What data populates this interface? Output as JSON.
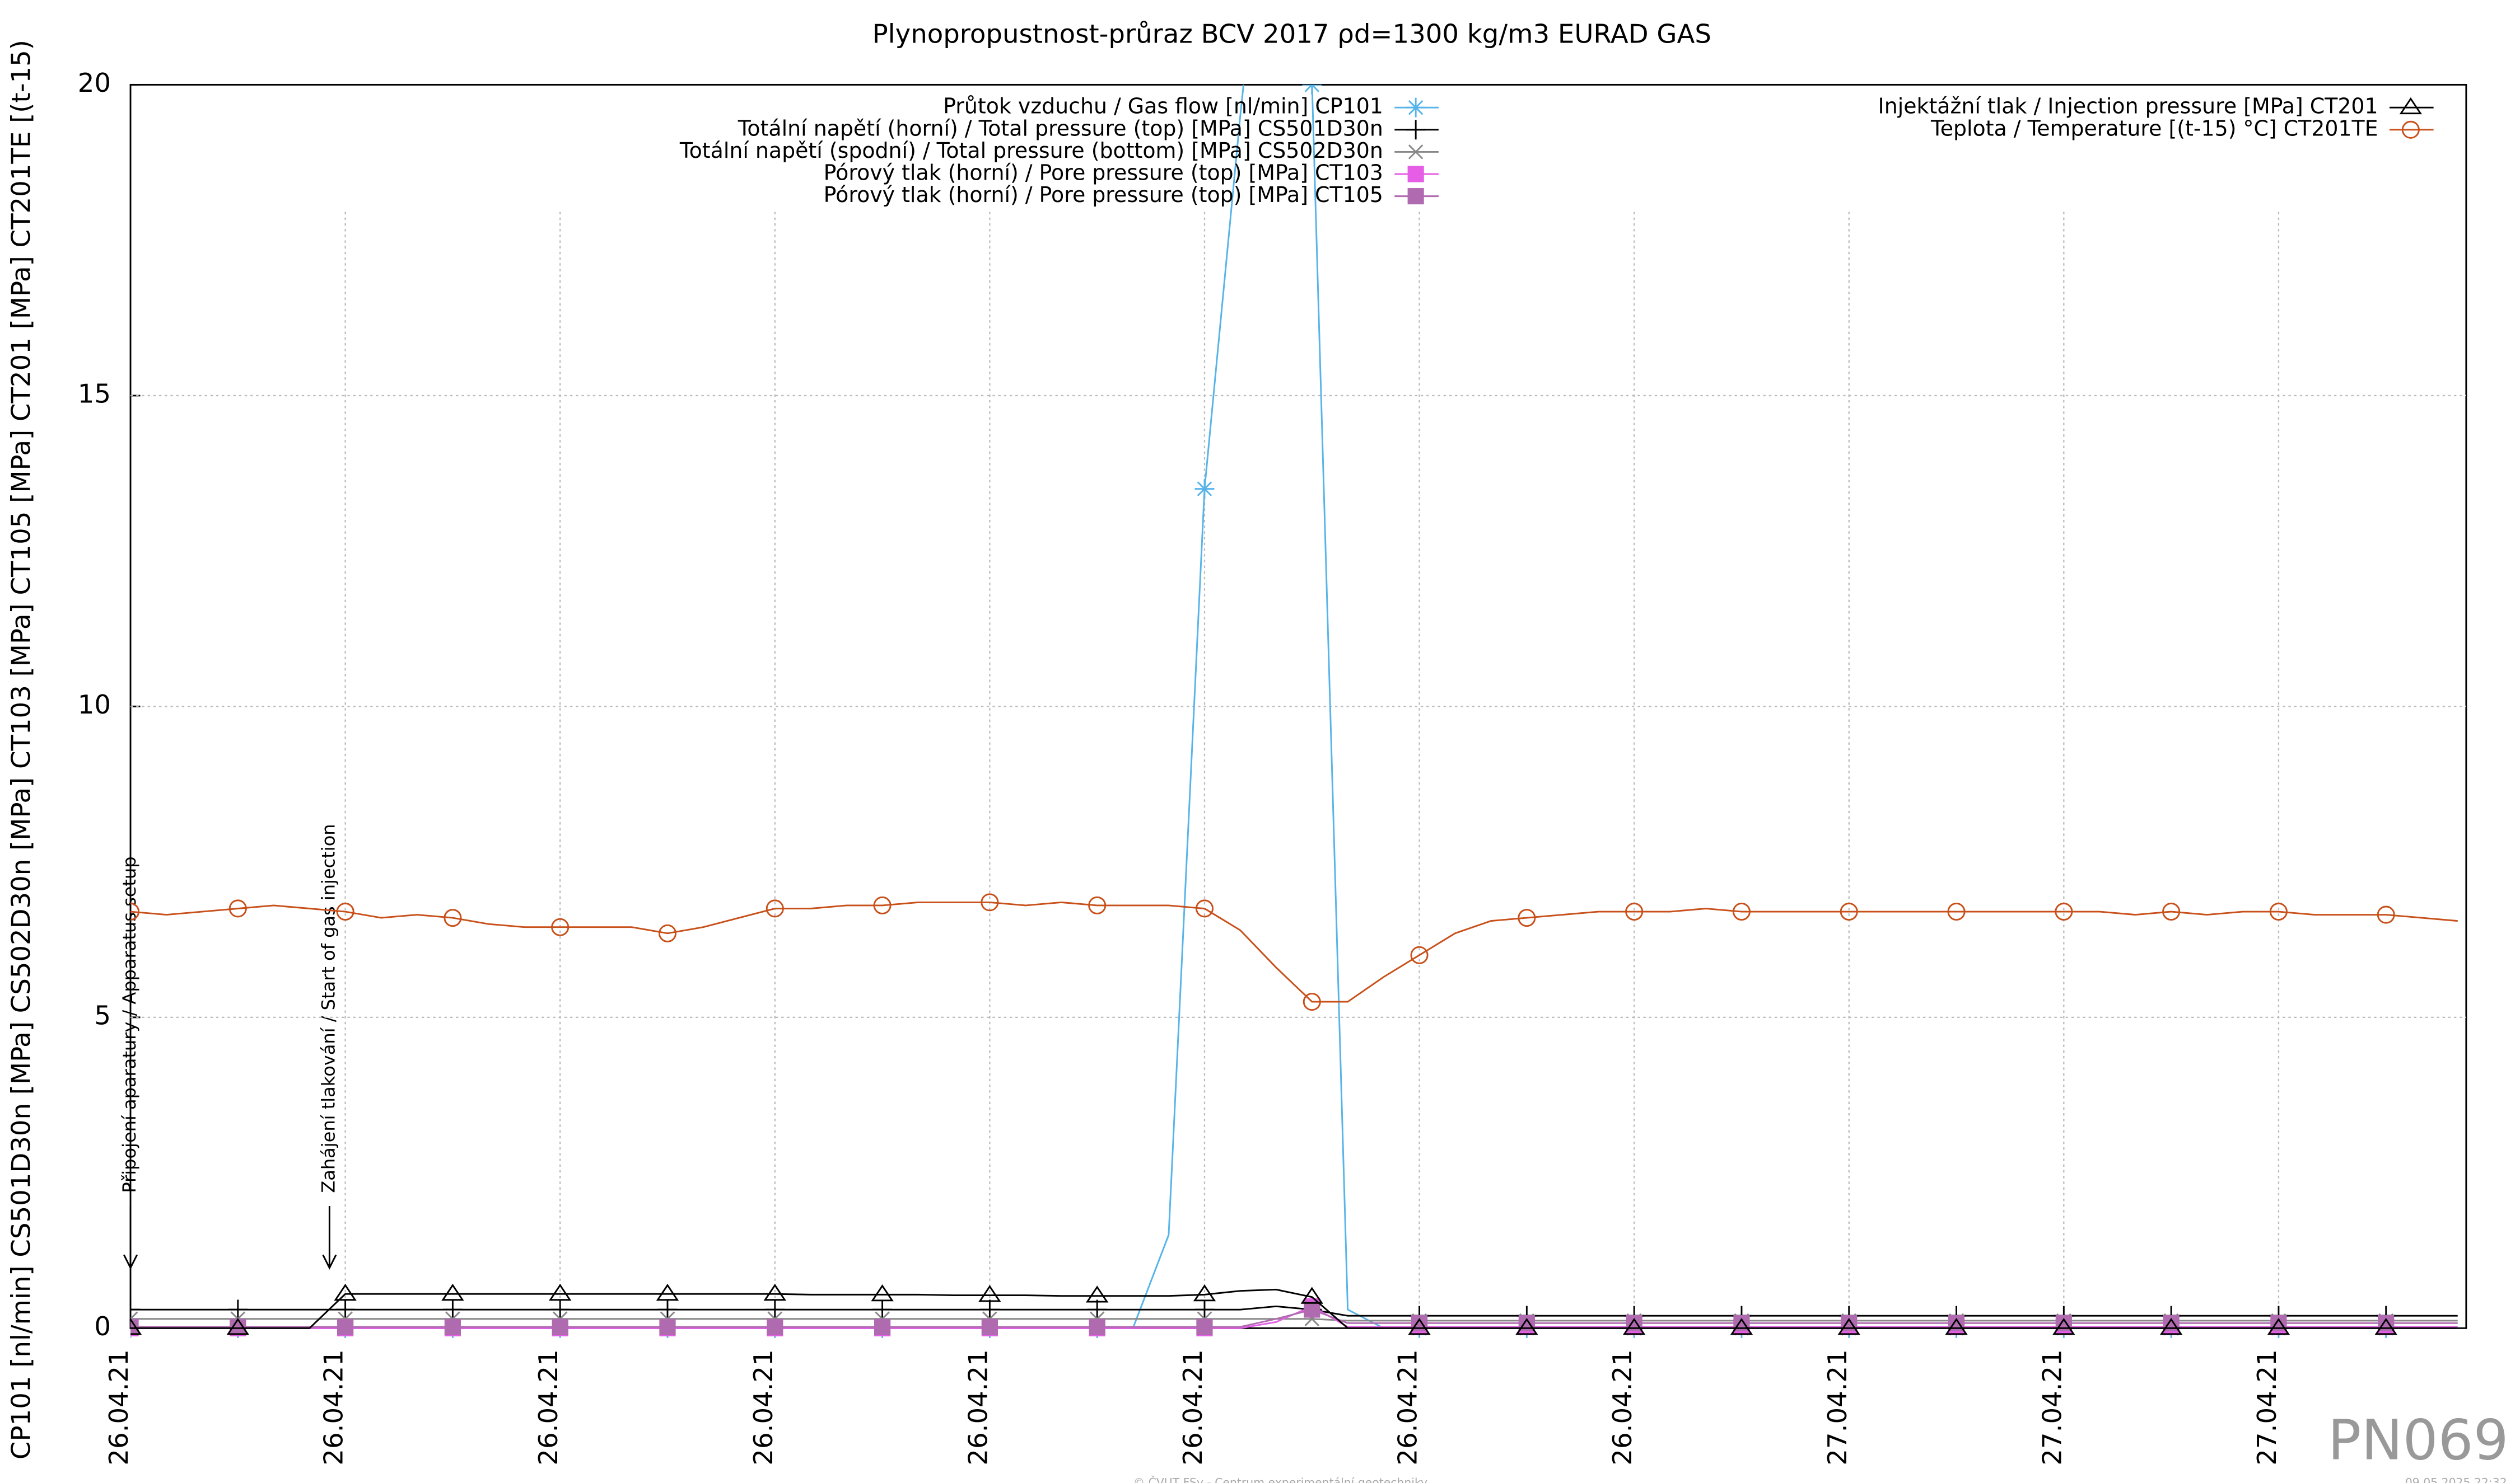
{
  "chart_data": {
    "type": "line",
    "title": "Plynopropustnost-průraz BCV 2017 ρd=1300 kg/m3 EURAD GAS",
    "y_label": "CP101 [nl/min] CS501D30n [MPa] CS502D30n [MPa] CT103 [MPa] CT105 [MPa] CT201 [MPa] CT201TE [(t-15)",
    "annotations": [
      "Připojení aparatury / Apparatus setup",
      "Zahájení tlakování / Start of gas injection"
    ],
    "watermark": "PN069",
    "footer": "© ČVUT FSv - Centrum experimentální geotechniky",
    "timestamp": "09.05.2025 22:32",
    "grid": true,
    "ylim": [
      0,
      20
    ],
    "yticks": [
      0,
      5,
      10,
      15,
      20
    ],
    "categories": [
      "26.04.21",
      null,
      null,
      null,
      null,
      null,
      "26.04.21",
      null,
      null,
      null,
      null,
      null,
      "26.04.21",
      null,
      null,
      null,
      null,
      null,
      "26.04.21",
      null,
      null,
      null,
      null,
      null,
      "26.04.21",
      null,
      null,
      null,
      null,
      null,
      "26.04.21",
      null,
      null,
      null,
      null,
      null,
      "26.04.21",
      null,
      null,
      null,
      null,
      null,
      "26.04.21",
      null,
      null,
      null,
      null,
      null,
      "27.04.21",
      null,
      null,
      null,
      null,
      null,
      "27.04.21",
      null,
      null,
      null,
      null,
      null,
      "27.04.21",
      null,
      null,
      null,
      null,
      null
    ],
    "series": [
      {
        "name": "Průtok vzduchu / Gas flow [nl/min] CP101",
        "color": "#56b4e9",
        "marker": "asterisk",
        "values": [
          0,
          0,
          0,
          0,
          0,
          0,
          0,
          0,
          0,
          0,
          0,
          0,
          0,
          0,
          0,
          0,
          0,
          0,
          0,
          0,
          0,
          0,
          0,
          0,
          0,
          0,
          0,
          0,
          0,
          1.5,
          13.5,
          19.5,
          25,
          20,
          0.3,
          0,
          0,
          0,
          0,
          0,
          0,
          0,
          0,
          0,
          0,
          0,
          0,
          0,
          0,
          0,
          0,
          0,
          0,
          0,
          0,
          0,
          0,
          0,
          0,
          0,
          0,
          0,
          0,
          0,
          0,
          0
        ]
      },
      {
        "name": "Totální napětí (horní) / Total pressure (top) [MPa] CS501D30n",
        "color": "#000000",
        "marker": "plus",
        "values": [
          0.3,
          0.3,
          0.3,
          0.3,
          0.3,
          0.3,
          0.3,
          0.3,
          0.3,
          0.3,
          0.3,
          0.3,
          0.3,
          0.3,
          0.3,
          0.3,
          0.3,
          0.3,
          0.3,
          0.3,
          0.3,
          0.3,
          0.3,
          0.3,
          0.3,
          0.3,
          0.3,
          0.3,
          0.3,
          0.3,
          0.3,
          0.3,
          0.35,
          0.3,
          0.2,
          0.2,
          0.2,
          0.2,
          0.2,
          0.2,
          0.2,
          0.2,
          0.2,
          0.2,
          0.2,
          0.2,
          0.2,
          0.2,
          0.2,
          0.2,
          0.2,
          0.2,
          0.2,
          0.2,
          0.2,
          0.2,
          0.2,
          0.2,
          0.2,
          0.2,
          0.2,
          0.2,
          0.2,
          0.2,
          0.2,
          0.2
        ]
      },
      {
        "name": "Totální napětí (spodní) / Total pressure (bottom) [MPa] CS502D30n",
        "color": "#888888",
        "marker": "cross",
        "values": [
          0.15,
          0.15,
          0.15,
          0.15,
          0.15,
          0.15,
          0.15,
          0.15,
          0.15,
          0.15,
          0.15,
          0.15,
          0.15,
          0.15,
          0.15,
          0.15,
          0.15,
          0.15,
          0.15,
          0.15,
          0.15,
          0.15,
          0.15,
          0.15,
          0.15,
          0.15,
          0.15,
          0.15,
          0.15,
          0.15,
          0.15,
          0.15,
          0.15,
          0.15,
          0.12,
          0.12,
          0.12,
          0.12,
          0.12,
          0.12,
          0.12,
          0.12,
          0.12,
          0.12,
          0.12,
          0.12,
          0.12,
          0.12,
          0.12,
          0.12,
          0.12,
          0.12,
          0.12,
          0.12,
          0.12,
          0.12,
          0.12,
          0.12,
          0.12,
          0.12,
          0.12,
          0.12,
          0.12,
          0.12,
          0.12,
          0.12
        ]
      },
      {
        "name": "Pórový tlak (horní) / Pore pressure (top) [MPa] CT103",
        "color": "#e55ee5",
        "marker": "square",
        "values": [
          0,
          0,
          0,
          0,
          0,
          0,
          0,
          0,
          0,
          0,
          0,
          0,
          0,
          0,
          0,
          0,
          0,
          0,
          0,
          0,
          0,
          0,
          0,
          0,
          0,
          0,
          0,
          0,
          0,
          0,
          0,
          0,
          0.1,
          0.35,
          0.02,
          0.02,
          0.02,
          0.02,
          0.02,
          0.02,
          0.02,
          0.02,
          0.02,
          0.02,
          0.02,
          0.02,
          0.02,
          0.02,
          0.02,
          0.02,
          0.02,
          0.02,
          0.02,
          0.02,
          0.02,
          0.02,
          0.02,
          0.02,
          0.02,
          0.02,
          0.02,
          0.02,
          0.02,
          0.02,
          0.02,
          0.02
        ]
      },
      {
        "name": "Pórový tlak (horní) / Pore pressure (top) [MPa] CT105",
        "color": "#b06ab0",
        "marker": "square",
        "values": [
          0.02,
          0.02,
          0.02,
          0.02,
          0.02,
          0.02,
          0.02,
          0.02,
          0.02,
          0.02,
          0.02,
          0.02,
          0.02,
          0.02,
          0.02,
          0.02,
          0.02,
          0.02,
          0.02,
          0.02,
          0.02,
          0.02,
          0.02,
          0.02,
          0.02,
          0.02,
          0.02,
          0.02,
          0.02,
          0.02,
          0.02,
          0.02,
          0.15,
          0.3,
          0.08,
          0.08,
          0.08,
          0.08,
          0.08,
          0.08,
          0.08,
          0.08,
          0.08,
          0.08,
          0.08,
          0.08,
          0.08,
          0.08,
          0.08,
          0.08,
          0.08,
          0.08,
          0.08,
          0.08,
          0.08,
          0.08,
          0.08,
          0.08,
          0.08,
          0.08,
          0.08,
          0.08,
          0.08,
          0.08,
          0.08,
          0.08
        ]
      },
      {
        "name": "Injektážní tlak / Injection pressure [MPa] CT201",
        "color": "#000000",
        "marker": "triangle",
        "values": [
          0,
          0,
          0,
          0,
          0,
          0,
          0.55,
          0.55,
          0.55,
          0.55,
          0.55,
          0.55,
          0.55,
          0.55,
          0.55,
          0.55,
          0.55,
          0.55,
          0.55,
          0.54,
          0.54,
          0.54,
          0.54,
          0.53,
          0.53,
          0.53,
          0.52,
          0.52,
          0.52,
          0.52,
          0.54,
          0.6,
          0.62,
          0.5,
          0,
          0,
          0,
          0,
          0,
          0,
          0,
          0,
          0,
          0,
          0,
          0,
          0,
          0,
          0,
          0,
          0,
          0,
          0,
          0,
          0,
          0,
          0,
          0,
          0,
          0,
          0,
          0,
          0,
          0,
          0,
          0
        ]
      },
      {
        "name": "Teplota / Temperature [(t-15) °C] CT201TE",
        "color": "#c8501a",
        "marker": "circle",
        "values": [
          6.7,
          6.65,
          6.7,
          6.75,
          6.8,
          6.75,
          6.7,
          6.6,
          6.65,
          6.6,
          6.5,
          6.45,
          6.45,
          6.45,
          6.45,
          6.35,
          6.45,
          6.6,
          6.75,
          6.75,
          6.8,
          6.8,
          6.85,
          6.85,
          6.85,
          6.8,
          6.85,
          6.8,
          6.8,
          6.8,
          6.75,
          6.4,
          5.8,
          5.25,
          5.25,
          5.65,
          6.0,
          6.35,
          6.55,
          6.6,
          6.65,
          6.7,
          6.7,
          6.7,
          6.75,
          6.7,
          6.7,
          6.7,
          6.7,
          6.7,
          6.7,
          6.7,
          6.7,
          6.7,
          6.7,
          6.7,
          6.65,
          6.7,
          6.65,
          6.7,
          6.7,
          6.65,
          6.65,
          6.65,
          6.6,
          6.55
        ]
      }
    ]
  }
}
